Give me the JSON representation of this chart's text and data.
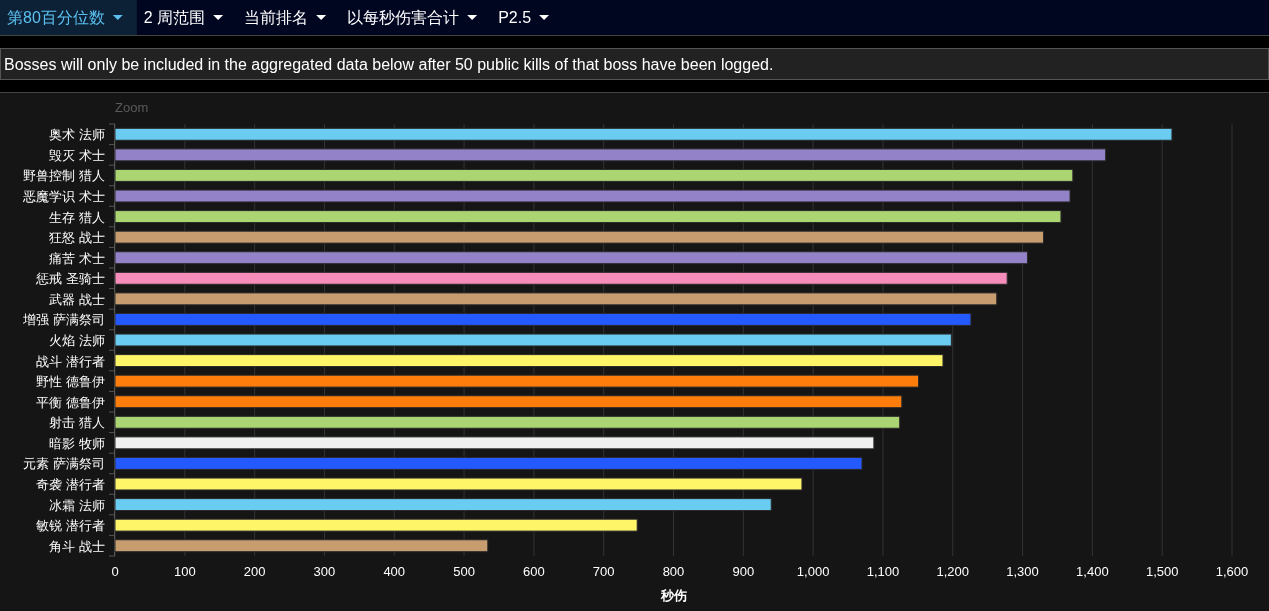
{
  "chart_data": {
    "type": "bar",
    "orientation": "horizontal",
    "categories": [
      "奥术 法师",
      "毁灭 术士",
      "野兽控制 猎人",
      "恶魔学识 术士",
      "生存 猎人",
      "狂怒 战士",
      "痛苦 术士",
      "惩戒 圣骑士",
      "武器 战士",
      "增强 萨满祭司",
      "火焰 法师",
      "战斗 潜行者",
      "野性 德鲁伊",
      "平衡 德鲁伊",
      "射击 猎人",
      "暗影 牧师",
      "元素 萨满祭司",
      "奇袭 潜行者",
      "冰霜 法师",
      "敏锐 潜行者",
      "角斗 战士"
    ],
    "values": [
      1514,
      1419,
      1372,
      1368,
      1355,
      1330,
      1307,
      1278,
      1263,
      1226,
      1198,
      1186,
      1151,
      1127,
      1124,
      1087,
      1070,
      984,
      940,
      748,
      534
    ],
    "colors": [
      "#69ccf0",
      "#9482c9",
      "#abd473",
      "#9482c9",
      "#abd473",
      "#c79c6e",
      "#9482c9",
      "#f58cba",
      "#c79c6e",
      "#2459ff",
      "#69ccf0",
      "#fff569",
      "#ff7d0a",
      "#ff7d0a",
      "#abd473",
      "#f0f0f0",
      "#2459ff",
      "#fff569",
      "#69ccf0",
      "#fff569",
      "#c79c6e"
    ],
    "xlim": [
      0,
      1600
    ],
    "xticks": [
      0,
      100,
      200,
      300,
      400,
      500,
      600,
      700,
      800,
      900,
      {
        "value": 1000,
        "label": "1,000"
      },
      {
        "value": 1100,
        "label": "1,100"
      },
      {
        "value": 1200,
        "label": "1,200"
      },
      {
        "value": 1300,
        "label": "1,300"
      },
      {
        "value": 1400,
        "label": "1,400"
      },
      {
        "value": 1500,
        "label": "1,500"
      },
      {
        "value": 1600,
        "label": "1,600"
      }
    ],
    "xlabel": "秒伤",
    "grid": "x",
    "annotations": [
      "第80百分位数",
      "2 周范围",
      "当前排名",
      "以每秒伤害合计",
      "P2.5",
      "Bosses will only be included in the aggregated data below after 50 public kills of that boss have been logged.",
      "Zoom"
    ]
  }
}
